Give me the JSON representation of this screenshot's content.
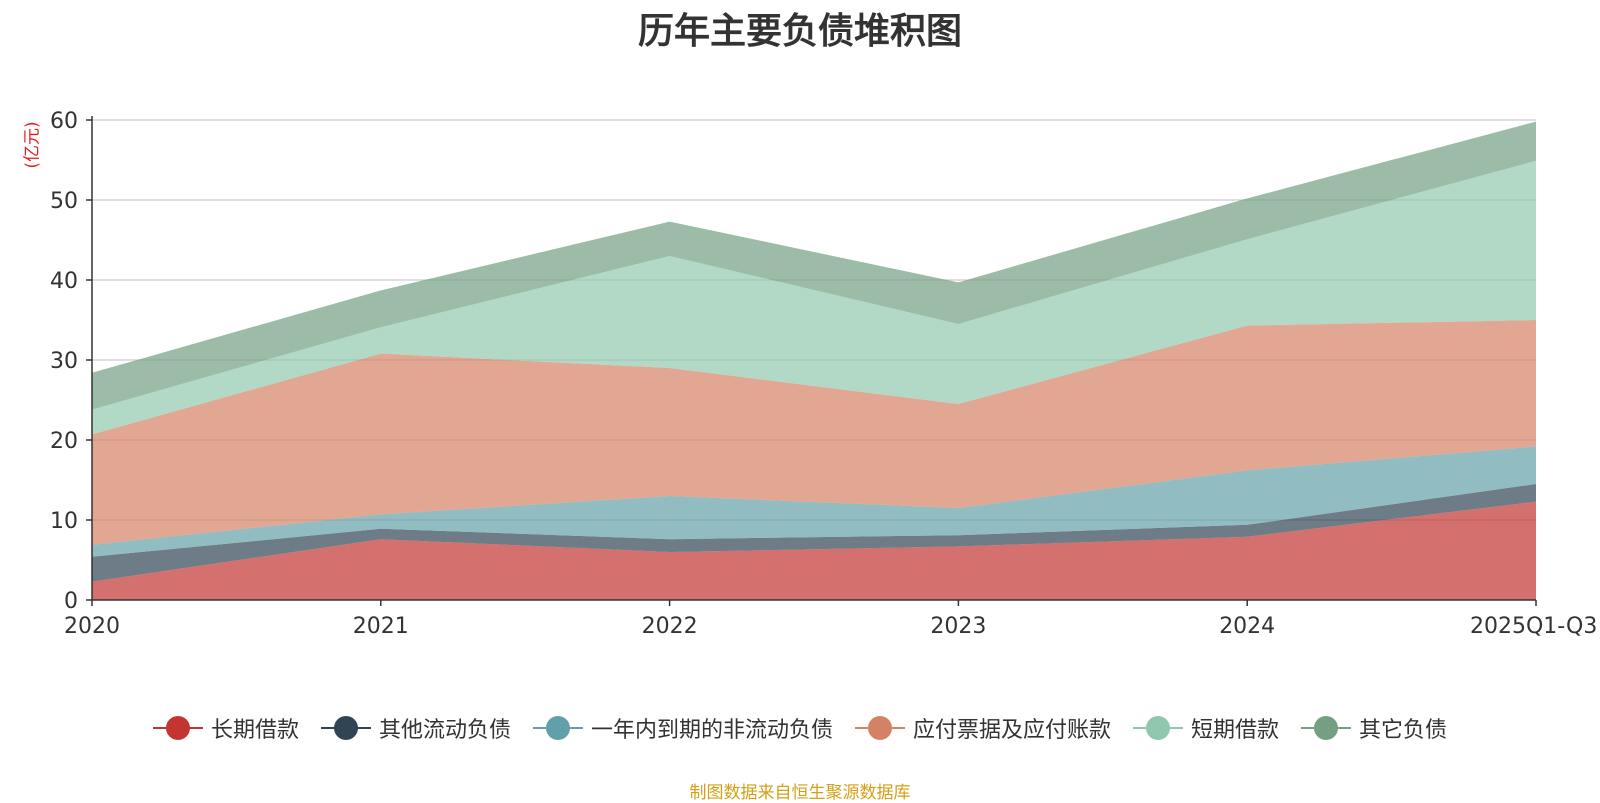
{
  "chart_data": {
    "type": "area",
    "stacked": true,
    "title": "历年主要负债堆积图",
    "unit_label": "(亿元)",
    "categories": [
      "2020",
      "2021",
      "2022",
      "2023",
      "2024",
      "2025Q1-Q3"
    ],
    "ylim": [
      0,
      60
    ],
    "yticks": [
      0,
      10,
      20,
      30,
      40,
      50,
      60
    ],
    "grid": true,
    "legend_position": "bottom",
    "series": [
      {
        "name": "长期借款",
        "color": "#c23531",
        "values": [
          2.3,
          7.6,
          6.0,
          6.7,
          7.9,
          12.3
        ]
      },
      {
        "name": "其他流动负债",
        "color": "#2f4554",
        "values": [
          3.1,
          1.3,
          1.6,
          1.4,
          1.5,
          2.2
        ]
      },
      {
        "name": "一年内到期的非流动负债",
        "color": "#61a0a8",
        "values": [
          1.5,
          1.8,
          5.4,
          3.4,
          6.8,
          4.7
        ]
      },
      {
        "name": "应付票据及应付账款",
        "color": "#d48265",
        "values": [
          13.8,
          20.1,
          16.0,
          13.0,
          18.1,
          15.8
        ]
      },
      {
        "name": "短期借款",
        "color": "#91c7ae",
        "values": [
          3.1,
          3.3,
          14.0,
          10.0,
          10.8,
          19.9
        ]
      },
      {
        "name": "其它负债",
        "color": "#749f83",
        "values": [
          4.6,
          4.6,
          4.3,
          5.2,
          5.1,
          4.9
        ]
      }
    ]
  },
  "footer": {
    "source": "制图数据来自恒生聚源数据库"
  }
}
